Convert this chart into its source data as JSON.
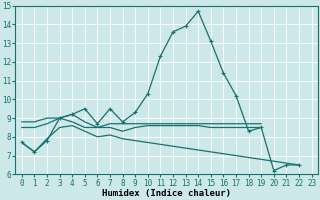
{
  "xlabel": "Humidex (Indice chaleur)",
  "xlim": [
    -0.5,
    23.5
  ],
  "ylim": [
    6,
    15
  ],
  "yticks": [
    6,
    7,
    8,
    9,
    10,
    11,
    12,
    13,
    14,
    15
  ],
  "xticks": [
    0,
    1,
    2,
    3,
    4,
    5,
    6,
    7,
    8,
    9,
    10,
    11,
    12,
    13,
    14,
    15,
    16,
    17,
    18,
    19,
    20,
    21,
    22,
    23
  ],
  "bg_color": "#cce8e8",
  "line_color": "#1a7070",
  "lines": [
    {
      "x": [
        0,
        1,
        2,
        3,
        4,
        5,
        6,
        7,
        8,
        9,
        10,
        11,
        12,
        13,
        14,
        15,
        16,
        17,
        18,
        19,
        20,
        21,
        22
      ],
      "y": [
        7.7,
        7.2,
        7.8,
        9.0,
        9.2,
        9.5,
        8.7,
        9.5,
        8.8,
        9.3,
        10.3,
        12.3,
        13.6,
        13.9,
        14.7,
        13.1,
        11.4,
        10.2,
        8.3,
        8.5,
        6.2,
        6.5,
        6.5
      ],
      "marker": true
    },
    {
      "x": [
        0,
        1,
        2,
        3,
        4,
        5,
        6,
        7,
        8,
        9,
        10,
        11,
        12,
        13,
        14,
        15,
        16,
        17,
        18,
        19
      ],
      "y": [
        8.8,
        8.8,
        9.0,
        9.0,
        8.8,
        8.5,
        8.5,
        8.7,
        8.7,
        8.7,
        8.7,
        8.7,
        8.7,
        8.7,
        8.7,
        8.7,
        8.7,
        8.7,
        8.7,
        8.7
      ],
      "marker": false
    },
    {
      "x": [
        0,
        1,
        2,
        3,
        4,
        5,
        6,
        7,
        8,
        9,
        10,
        11,
        12,
        13,
        14,
        15,
        16,
        17,
        18,
        19,
        20,
        21,
        22
      ],
      "y": [
        7.7,
        7.2,
        7.9,
        8.5,
        8.6,
        8.3,
        8.0,
        8.1,
        7.9,
        7.8,
        7.7,
        7.6,
        7.5,
        7.4,
        7.3,
        7.2,
        7.1,
        7.0,
        6.9,
        6.8,
        6.7,
        6.6,
        6.5
      ],
      "marker": false
    },
    {
      "x": [
        0,
        1,
        2,
        3,
        4,
        5,
        6,
        7,
        8,
        9,
        10,
        11,
        12,
        13,
        14,
        15,
        16,
        17,
        18,
        19
      ],
      "y": [
        8.5,
        8.5,
        8.7,
        9.0,
        9.2,
        8.8,
        8.5,
        8.5,
        8.3,
        8.5,
        8.6,
        8.6,
        8.6,
        8.6,
        8.6,
        8.5,
        8.5,
        8.5,
        8.5,
        8.5
      ],
      "marker": false
    }
  ],
  "tick_fontsize": 5.5,
  "xlabel_fontsize": 6.5
}
